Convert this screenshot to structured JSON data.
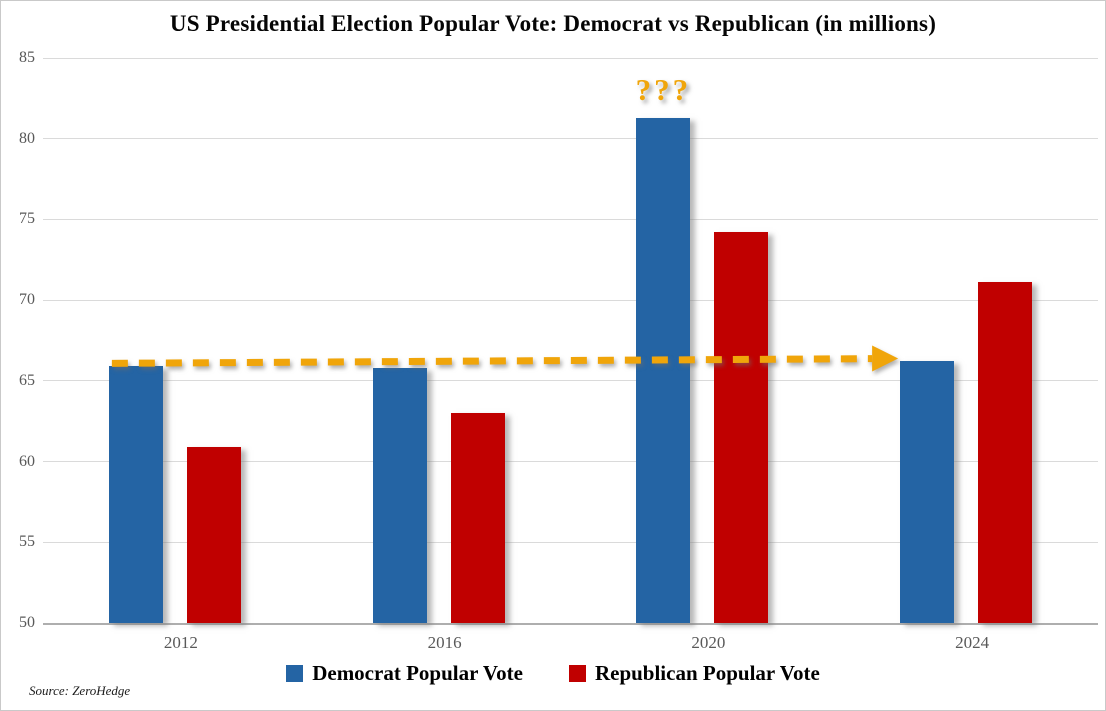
{
  "title": "US Presidential Election Popular Vote: Democrat vs Republican (in millions)",
  "source": "Source: ZeroHedge",
  "colors": {
    "democrat": "#2464a4",
    "republican": "#c00000",
    "annotation_gold": "#f0a50a",
    "gridline": "#dadada",
    "baseline": "#aeaeae",
    "axis_text": "#595959"
  },
  "chart_data": {
    "type": "bar",
    "title": "US Presidential Election Popular Vote: Democrat vs Republican (in millions)",
    "categories": [
      "2012",
      "2016",
      "2020",
      "2024"
    ],
    "series": [
      {
        "name": "Democrat Popular Vote",
        "color": "#2464a4",
        "values": [
          65.9,
          65.8,
          81.3,
          66.2
        ]
      },
      {
        "name": "Republican Popular Vote",
        "color": "#c00000",
        "values": [
          60.9,
          63.0,
          74.2,
          71.1
        ]
      }
    ],
    "xlabel": "",
    "ylabel": "",
    "ylim": [
      50,
      85
    ],
    "yticks": [
      50,
      55,
      60,
      65,
      70,
      75,
      80,
      85
    ],
    "grid": true,
    "legend_position": "bottom",
    "annotations": [
      {
        "type": "text",
        "text": "???",
        "category": "2020",
        "series": "Democrat Popular Vote",
        "color": "#f0a50a"
      },
      {
        "type": "dashed-arrow",
        "from_category": "2012",
        "to_category": "2024",
        "value_start": 65.9,
        "value_end": 66.2,
        "color": "#f0a50a",
        "meaning": "Democrat vote roughly flat (~66M) in 2012, 2016 and 2024; 2020 spike questioned"
      }
    ]
  }
}
